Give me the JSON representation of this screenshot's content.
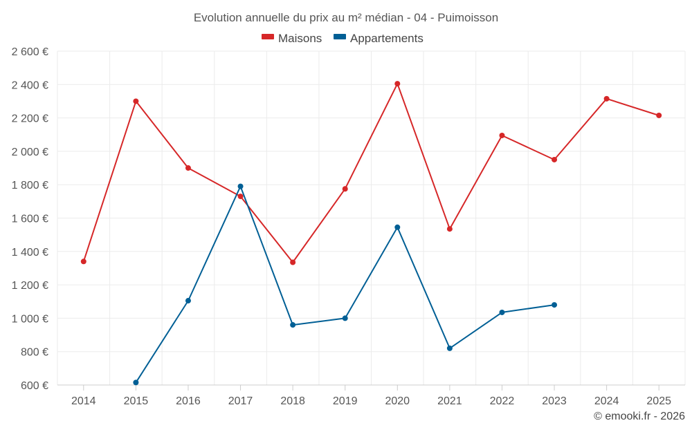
{
  "chart_data": {
    "type": "line",
    "title": "Evolution annuelle du prix au m² médian - 04 - Puimoisson",
    "x": [
      "2014",
      "2015",
      "2016",
      "2017",
      "2018",
      "2019",
      "2020",
      "2021",
      "2022",
      "2023",
      "2024",
      "2025"
    ],
    "series": [
      {
        "name": "Maisons",
        "color": "#d62728",
        "values": [
          1340,
          2300,
          1900,
          1730,
          1335,
          1775,
          2405,
          1535,
          2095,
          1950,
          2315,
          2215
        ]
      },
      {
        "name": "Appartements",
        "color": "#005f95",
        "values": [
          null,
          615,
          1105,
          1790,
          960,
          1000,
          1545,
          820,
          1035,
          1080,
          null,
          null
        ]
      }
    ],
    "ylim": [
      600,
      2600
    ],
    "y_ticks": [
      600,
      800,
      1000,
      1200,
      1400,
      1600,
      1800,
      2000,
      2200,
      2400,
      2600
    ],
    "y_tick_labels": [
      "600 €",
      "800 €",
      "1 000 €",
      "1 200 €",
      "1 400 €",
      "1 600 €",
      "1 800 €",
      "2 000 €",
      "2 200 €",
      "2 400 €",
      "2 600 €"
    ],
    "grid": true,
    "legend_position": "top-center"
  },
  "footer": {
    "copyright": "© emooki.fr - 2026"
  }
}
